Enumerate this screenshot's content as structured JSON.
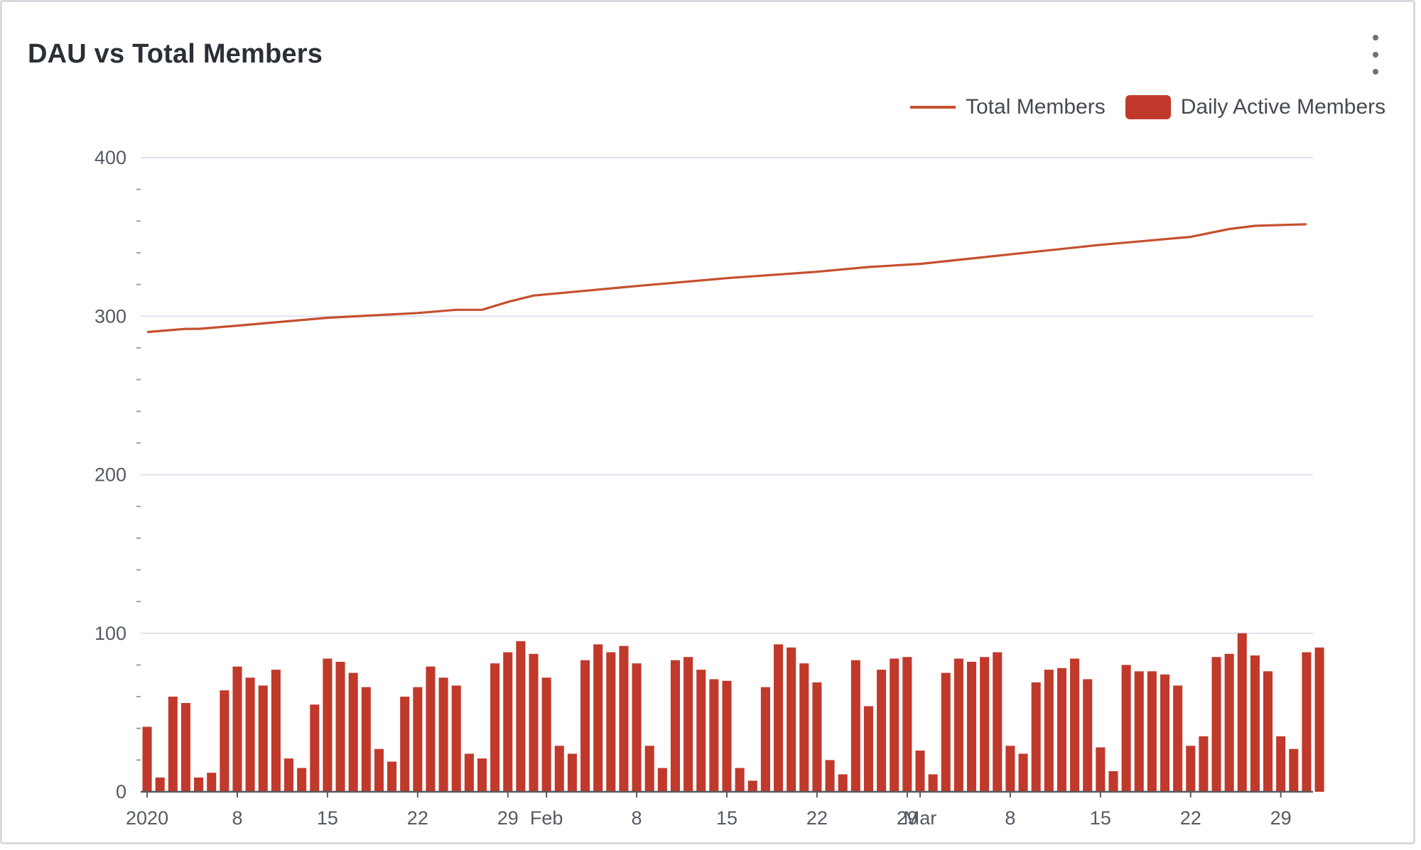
{
  "card": {
    "title": "DAU vs Total Members",
    "menu_icon": "kebab-menu-icon"
  },
  "legend": [
    {
      "label": "Total Members",
      "kind": "line",
      "color": "#c5502f"
    },
    {
      "label": "Daily Active Members",
      "kind": "bar",
      "color": "#c0392b"
    }
  ],
  "chart_data": {
    "type": "bar+line",
    "title": "DAU vs Total Members",
    "ylim": [
      0,
      400
    ],
    "yticks": [
      0,
      100,
      200,
      300,
      400
    ],
    "grid": true,
    "legend_position": "top-right",
    "x_start": "2020-01-01",
    "x_end": "2020-03-31",
    "xtick_labels": [
      {
        "date": "2020-01-01",
        "label": "2020"
      },
      {
        "date": "2020-01-08",
        "label": "8"
      },
      {
        "date": "2020-01-15",
        "label": "15"
      },
      {
        "date": "2020-01-22",
        "label": "22"
      },
      {
        "date": "2020-01-29",
        "label": "29"
      },
      {
        "date": "2020-02-01",
        "label": "Feb"
      },
      {
        "date": "2020-02-08",
        "label": "8"
      },
      {
        "date": "2020-02-15",
        "label": "15"
      },
      {
        "date": "2020-02-22",
        "label": "22"
      },
      {
        "date": "2020-02-29",
        "label": "29"
      },
      {
        "date": "2020-03-01",
        "label": "Mar"
      },
      {
        "date": "2020-03-08",
        "label": "8"
      },
      {
        "date": "2020-03-15",
        "label": "15"
      },
      {
        "date": "2020-03-22",
        "label": "22"
      },
      {
        "date": "2020-03-29",
        "label": "29"
      }
    ],
    "series": [
      {
        "name": "Daily Active Members",
        "kind": "bar",
        "color": "#c0392b",
        "values": [
          41,
          9,
          60,
          56,
          9,
          12,
          64,
          79,
          72,
          67,
          77,
          21,
          15,
          55,
          84,
          82,
          75,
          66,
          27,
          19,
          60,
          66,
          79,
          72,
          67,
          24,
          21,
          81,
          88,
          95,
          87,
          72,
          29,
          24,
          83,
          93,
          88,
          92,
          81,
          29,
          15,
          83,
          85,
          77,
          71,
          70,
          15,
          7,
          66,
          93,
          91,
          81,
          69,
          20,
          11,
          83,
          54,
          77,
          84,
          85,
          26,
          11,
          75,
          84,
          82,
          85,
          88,
          29,
          24,
          69,
          77,
          78,
          84,
          71,
          28,
          13,
          80,
          76,
          76,
          74,
          67,
          29,
          35,
          85,
          87,
          100,
          86,
          76,
          35,
          27,
          88,
          91
        ]
      },
      {
        "name": "Total Members",
        "kind": "line",
        "color": "#c5502f",
        "points": [
          [
            "2020-01-01",
            290
          ],
          [
            "2020-01-04",
            292
          ],
          [
            "2020-01-05",
            292
          ],
          [
            "2020-01-08",
            294
          ],
          [
            "2020-01-15",
            299
          ],
          [
            "2020-01-22",
            302
          ],
          [
            "2020-01-25",
            304
          ],
          [
            "2020-01-27",
            304
          ],
          [
            "2020-01-29",
            309
          ],
          [
            "2020-01-31",
            313
          ],
          [
            "2020-02-08",
            319
          ],
          [
            "2020-02-15",
            324
          ],
          [
            "2020-02-22",
            328
          ],
          [
            "2020-02-26",
            331
          ],
          [
            "2020-03-01",
            333
          ],
          [
            "2020-03-08",
            339
          ],
          [
            "2020-03-15",
            345
          ],
          [
            "2020-03-22",
            350
          ],
          [
            "2020-03-25",
            355
          ],
          [
            "2020-03-27",
            357
          ],
          [
            "2020-03-31",
            358
          ]
        ]
      }
    ]
  }
}
